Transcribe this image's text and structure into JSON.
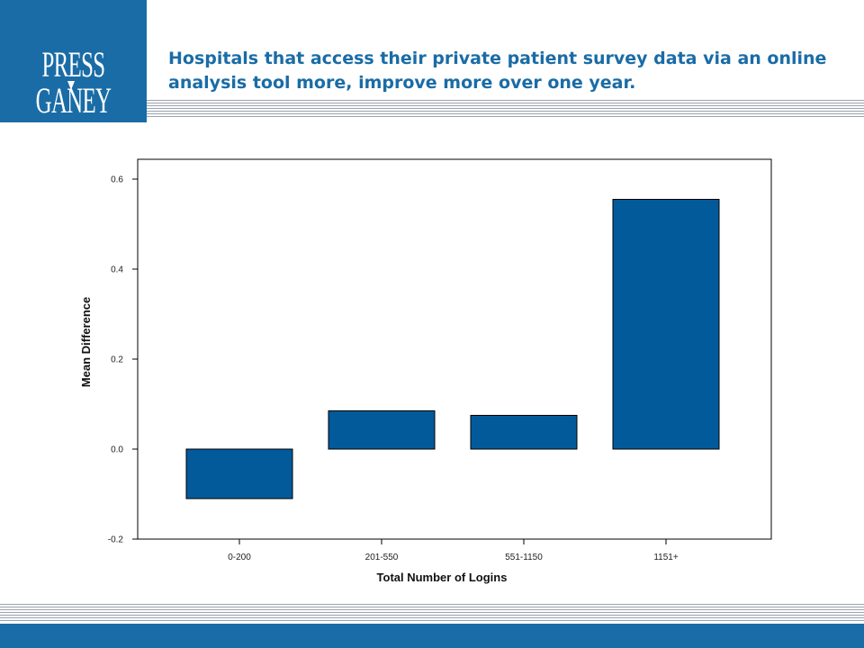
{
  "header": {
    "logo_text": "PRESS GANEY",
    "title": "Hospitals that access their private patient survey data via an online analysis tool more, improve more over one year."
  },
  "colors": {
    "brand": "#1a6ca6",
    "bar": "#035a9b"
  },
  "chart_data": {
    "type": "bar",
    "categories": [
      "0-200",
      "201-550",
      "551-1150",
      "1151+"
    ],
    "values": [
      -0.11,
      0.085,
      0.075,
      0.555
    ],
    "xlabel": "Total Number of Logins",
    "ylabel": "Mean Difference",
    "ylim": [
      -0.2,
      0.6
    ],
    "yticks": [
      "-0.2",
      "0.0",
      "0.2",
      "0.4",
      "0.6"
    ],
    "grid": false
  }
}
